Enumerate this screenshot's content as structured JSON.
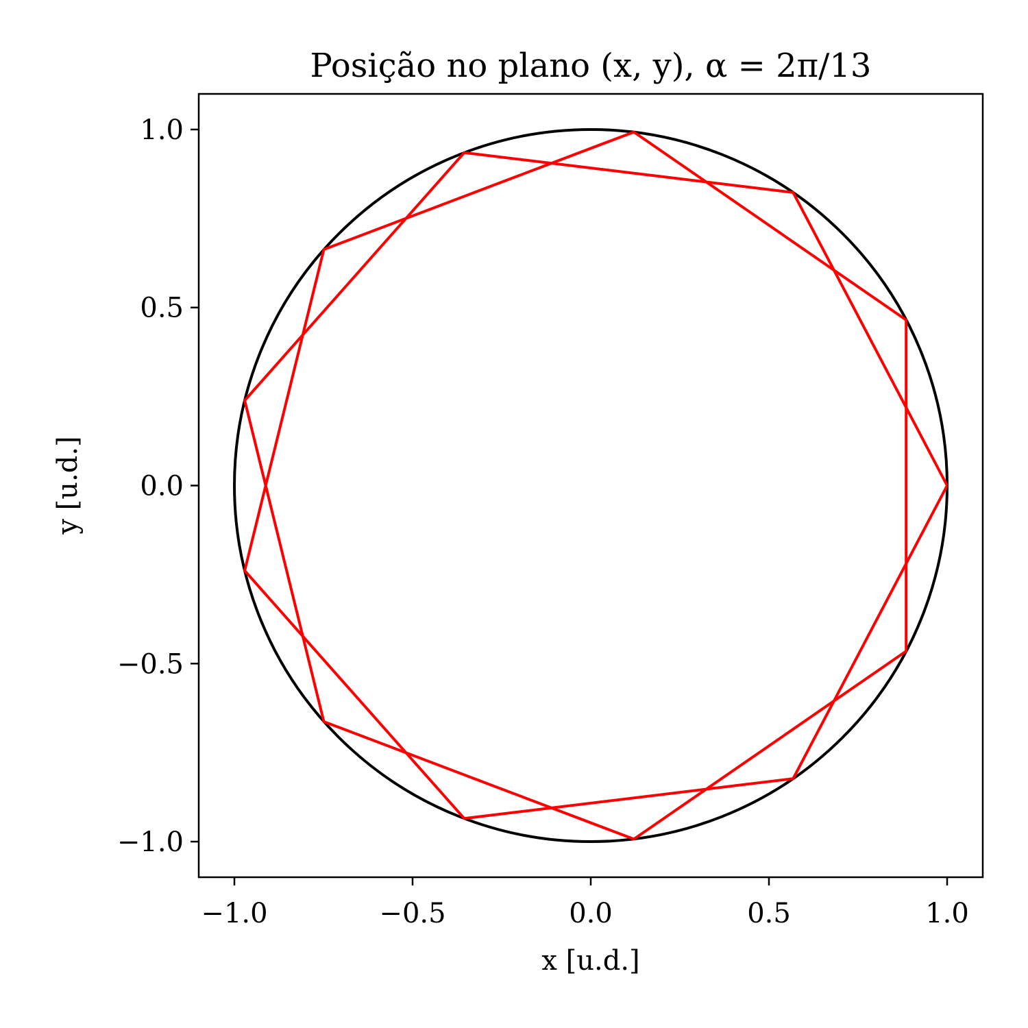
{
  "chart_data": {
    "type": "line",
    "title": "Posição no plano (x, y), α = 2π/13",
    "xlabel": "x [u.d.]",
    "ylabel": "y [u.d.]",
    "xlim": [
      -1.1,
      1.1
    ],
    "ylim": [
      -1.1,
      1.1
    ],
    "xticks": [
      -1.0,
      -0.5,
      0.0,
      0.5,
      1.0
    ],
    "yticks": [
      -1.0,
      -0.5,
      0.0,
      0.5,
      1.0
    ],
    "xtick_labels": [
      "−1.0",
      "−0.5",
      "0.0",
      "0.5",
      "1.0"
    ],
    "ytick_labels": [
      "−1.0",
      "−0.5",
      "0.0",
      "0.5",
      "1.0"
    ],
    "grid": false,
    "series": [
      {
        "kind": "circle",
        "color": "#000000",
        "center": [
          0,
          0
        ],
        "radius": 1.0
      },
      {
        "kind": "polyline",
        "color": "#ff0000",
        "points": [
          [
            1.0,
            0.0
          ],
          [
            0.568,
            -0.823
          ],
          [
            -0.355,
            -0.935
          ],
          [
            -0.971,
            -0.239
          ],
          [
            -0.749,
            0.663
          ],
          [
            0.121,
            0.993
          ],
          [
            0.885,
            0.465
          ],
          [
            0.885,
            -0.465
          ],
          [
            0.121,
            -0.993
          ],
          [
            -0.749,
            -0.663
          ],
          [
            -0.971,
            0.239
          ],
          [
            -0.355,
            0.935
          ],
          [
            0.568,
            0.823
          ],
          [
            1.0,
            0.0
          ]
        ]
      }
    ]
  }
}
